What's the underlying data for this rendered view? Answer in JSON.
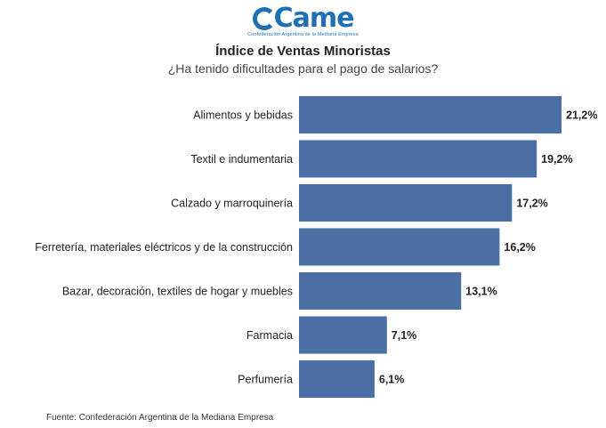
{
  "logo": {
    "wordmark": "Came",
    "tagline": "Confederación Argentina de la Mediana Empresa"
  },
  "colors": {
    "bar": "#4a6fa5",
    "brand": "#1f6fb5"
  },
  "chart_data": {
    "type": "bar",
    "orientation": "horizontal",
    "title": "Índice de Ventas Minoristas",
    "subtitle": "¿Ha tenido dificultades para el pago de salarios?",
    "categories": [
      "Alimentos y bebidas",
      "Textil e indumentaria",
      "Calzado y marroquinería",
      "Ferretería, materiales eléctricos y de la construcción",
      "Bazar, decoración, textiles de hogar y muebles",
      "Farmacia",
      "Perfumería"
    ],
    "values": [
      21.2,
      19.2,
      17.2,
      16.2,
      13.1,
      7.1,
      6.1
    ],
    "value_labels": [
      "21,2%",
      "19,2%",
      "17,2%",
      "16,2%",
      "13,1%",
      "7,1%",
      "6,1%"
    ],
    "xlim": [
      0,
      21.2
    ],
    "unit": "%"
  },
  "footer": {
    "source": "Fuente: Confederación Argentina de la Mediana Empresa"
  }
}
